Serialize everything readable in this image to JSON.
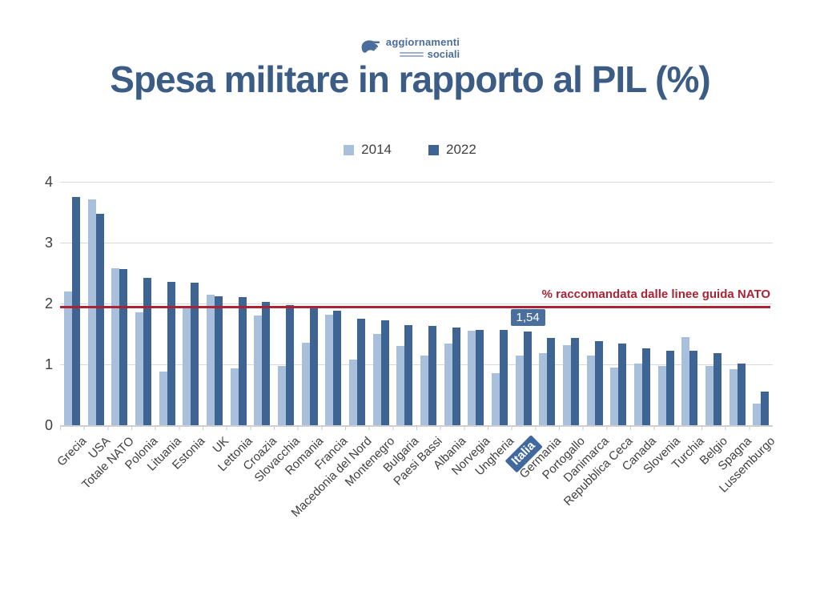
{
  "logo": {
    "line1": "aggiornamenti",
    "line2": "sociali",
    "color": "#4a6d9b"
  },
  "title": {
    "text": "Spesa militare in rapporto al PIL (%)",
    "color": "#3b5c85"
  },
  "legend": [
    {
      "label": "2014",
      "color": "#a9c0dc"
    },
    {
      "label": "2022",
      "color": "#3e6493"
    }
  ],
  "chart_data": {
    "type": "bar",
    "title": "Spesa militare in rapporto al PIL (%)",
    "categories": [
      "Grecia",
      "USA",
      "Totale NATO",
      "Polonia",
      "Lituania",
      "Estonia",
      "UK",
      "Lettonia",
      "Croazia",
      "Slovacchia",
      "Romania",
      "Francia",
      "Macedonia del Nord",
      "Montenegro",
      "Bulgaria",
      "Paesi Bassi",
      "Albania",
      "Norvegia",
      "Ungheria",
      "Italia",
      "Germania",
      "Portogallo",
      "Danimarca",
      "Repubblica Ceca",
      "Canada",
      "Slovenia",
      "Turchia",
      "Belgio",
      "Spagna",
      "Lussemburgo"
    ],
    "series": [
      {
        "name": "2014",
        "color": "#a9c0dc",
        "values": [
          2.2,
          3.71,
          2.58,
          1.85,
          0.88,
          1.93,
          2.14,
          0.94,
          1.8,
          0.98,
          1.35,
          1.82,
          1.08,
          1.5,
          1.3,
          1.15,
          1.34,
          1.55,
          0.86,
          1.14,
          1.18,
          1.31,
          1.15,
          0.95,
          1.01,
          0.97,
          1.45,
          0.97,
          0.92,
          0.36
        ]
      },
      {
        "name": "2022",
        "color": "#3e6493",
        "values": [
          3.75,
          3.47,
          2.57,
          2.42,
          2.36,
          2.34,
          2.12,
          2.1,
          2.03,
          1.98,
          1.95,
          1.88,
          1.75,
          1.72,
          1.65,
          1.63,
          1.61,
          1.57,
          1.56,
          1.54,
          1.44,
          1.43,
          1.38,
          1.34,
          1.27,
          1.22,
          1.22,
          1.18,
          1.01,
          0.55
        ]
      }
    ],
    "ylim": [
      0,
      4
    ],
    "yticks": [
      0,
      1,
      2,
      3,
      4
    ],
    "grid": "horizontal",
    "legend_position": "top",
    "reference_line": {
      "value": 1.95,
      "label": "% raccomandata dalle linee guida NATO",
      "color": "#a92334"
    },
    "highlight": {
      "category": "Italia",
      "series": "2022",
      "data_label": "1,54",
      "label_bg": "#4a6f9d"
    }
  }
}
